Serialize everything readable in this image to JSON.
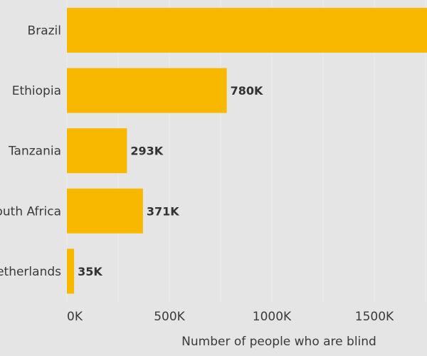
{
  "chart_data": {
    "type": "bar",
    "orientation": "horizontal",
    "categories": [
      "Brazil",
      "Ethiopia",
      "Tanzania",
      "South Africa",
      "Netherlands"
    ],
    "values": [
      1800000,
      780000,
      293000,
      371000,
      35000
    ],
    "data_labels": [
      "",
      "780K",
      "293K",
      "371K",
      "35K"
    ],
    "xlabel": "Number of people who are blind",
    "ylabel": "",
    "title": "",
    "xlim": [
      0,
      1750000
    ],
    "x_ticks": [
      0,
      500000,
      1000000,
      1500000
    ],
    "x_tick_labels": [
      "0K",
      "500K",
      "1000K",
      "1500K"
    ],
    "bar_color": "#f9b800",
    "grid": true
  }
}
